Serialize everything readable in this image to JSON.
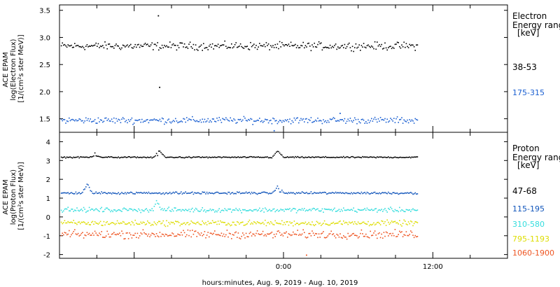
{
  "chart_data": [
    {
      "type": "scatter",
      "panel": "electron",
      "ylabel_lines": [
        "ACE EPAM",
        "log(Electron Flux)",
        "[1/(cm²s ster MeV)]"
      ],
      "ylim": [
        1.25,
        3.6
      ],
      "yticks": [
        1.5,
        2.0,
        2.5,
        3.0,
        3.5
      ],
      "ytick_labels": [
        "1.5",
        "2.0",
        "2.5",
        "3.0",
        "3.5"
      ],
      "x_range_hours": [
        -18,
        18
      ],
      "data_end_hour": 10.8,
      "legend": {
        "title_lines": [
          "Electron",
          "Energy ranges",
          "[keV]"
        ],
        "placement": "right"
      },
      "series": [
        {
          "name": "38-53",
          "color": "#000000",
          "level": 2.85,
          "noise": 0.06,
          "outliers": [
            [
              -10.1,
              3.41
            ],
            [
              -10.0,
              2.09
            ]
          ]
        },
        {
          "name": "175-315",
          "color": "#1a5fd1",
          "level": 1.48,
          "noise": 0.05,
          "outliers": [
            [
              -0.8,
              1.29
            ],
            [
              4.5,
              1.61
            ]
          ]
        }
      ]
    },
    {
      "type": "scatter",
      "panel": "proton",
      "ylabel_lines": [
        "ACE EPAM",
        "log(Proton Flux)",
        "[1/(cm²s ster MeV)]"
      ],
      "ylim": [
        -2.2,
        4.5
      ],
      "yticks": [
        -2,
        -1,
        0,
        1,
        2,
        3,
        4
      ],
      "ytick_labels": [
        "-2",
        "-1",
        "0",
        "1",
        "2",
        "3",
        "4"
      ],
      "x_range_hours": [
        -18,
        18
      ],
      "data_end_hour": 10.8,
      "legend": {
        "title_lines": [
          "Proton",
          "Energy ranges",
          "[keV]"
        ],
        "placement": "right"
      },
      "series": [
        {
          "name": "47-68",
          "color": "#000000",
          "level": 3.2,
          "noise": 0.03,
          "bumps": [
            [
              -15.2,
              3.45
            ],
            [
              -10.0,
              3.55
            ],
            [
              -0.5,
              3.55
            ]
          ]
        },
        {
          "name": "115-195",
          "color": "#1155bb",
          "level": 1.3,
          "noise": 0.05,
          "bumps": [
            [
              -15.8,
              1.75
            ],
            [
              -0.5,
              1.65
            ]
          ]
        },
        {
          "name": "310-580",
          "color": "#33dddd",
          "level": 0.4,
          "noise": 0.1,
          "bumps": [
            [
              -10.2,
              0.85
            ]
          ]
        },
        {
          "name": "795-1193",
          "color": "#dddd00",
          "level": -0.3,
          "noise": 0.12
        },
        {
          "name": "1060-1900",
          "color": "#ee5522",
          "level": -0.9,
          "noise": 0.18,
          "outliers": [
            [
              1.8,
              -2.0
            ]
          ]
        }
      ]
    }
  ],
  "x_axis": {
    "tick_labels": [
      "0:00",
      "12:00"
    ],
    "tick_hours": [
      0,
      12
    ],
    "label": "hours:minutes, Aug.  9, 2019 - Aug. 10, 2019"
  }
}
